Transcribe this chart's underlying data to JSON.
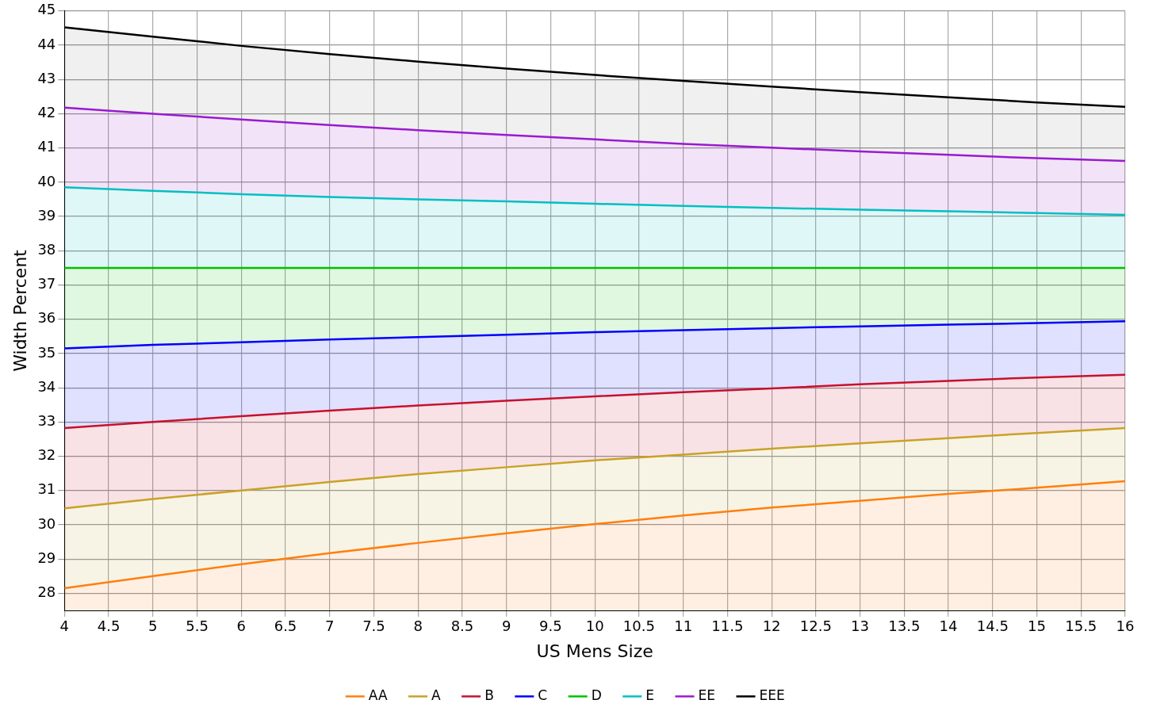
{
  "chart_data": {
    "type": "area",
    "xlabel": "US Mens Size",
    "ylabel": "Width Percent",
    "x": [
      4,
      5,
      6,
      7,
      8,
      9,
      10,
      11,
      12,
      13,
      14,
      15,
      16
    ],
    "xlim": [
      4,
      16
    ],
    "xticks": [
      4,
      4.5,
      5,
      5.5,
      6,
      6.5,
      7,
      7.5,
      8,
      8.5,
      9,
      9.5,
      10,
      10.5,
      11,
      11.5,
      12,
      12.5,
      13,
      13.5,
      14,
      14.5,
      15,
      15.5,
      16
    ],
    "ylim": [
      27.5,
      45
    ],
    "yticks": [
      28,
      29,
      30,
      31,
      32,
      33,
      34,
      35,
      36,
      37,
      38,
      39,
      40,
      41,
      42,
      43,
      44,
      45
    ],
    "grid": true,
    "legend": "bottom",
    "marker": "none",
    "line_style": "solid",
    "series": [
      {
        "name": "AA",
        "color": "#ff7f0e",
        "values": [
          28.15,
          28.5,
          28.85,
          29.17,
          29.47,
          29.75,
          30.02,
          30.27,
          30.5,
          30.7,
          30.9,
          31.08,
          31.27
        ]
      },
      {
        "name": "A",
        "color": "#c9a227",
        "values": [
          30.48,
          30.75,
          31.0,
          31.25,
          31.48,
          31.68,
          31.88,
          32.05,
          32.22,
          32.38,
          32.53,
          32.68,
          32.82
        ]
      },
      {
        "name": "B",
        "color": "#c8102e",
        "values": [
          32.82,
          33.0,
          33.17,
          33.33,
          33.48,
          33.62,
          33.75,
          33.87,
          33.98,
          34.1,
          34.2,
          34.3,
          34.38
        ]
      },
      {
        "name": "C",
        "color": "#0000ff",
        "values": [
          35.15,
          35.25,
          35.33,
          35.41,
          35.48,
          35.55,
          35.62,
          35.68,
          35.74,
          35.79,
          35.84,
          35.89,
          35.94
        ]
      },
      {
        "name": "D",
        "color": "#00c000",
        "values": [
          37.5,
          37.5,
          37.5,
          37.5,
          37.5,
          37.5,
          37.5,
          37.5,
          37.5,
          37.5,
          37.5,
          37.5,
          37.5
        ]
      },
      {
        "name": "E",
        "color": "#00c0c0",
        "values": [
          39.85,
          39.75,
          39.65,
          39.57,
          39.5,
          39.44,
          39.37,
          39.31,
          39.25,
          39.2,
          39.15,
          39.1,
          39.05
        ]
      },
      {
        "name": "EE",
        "color": "#9a1ad0",
        "values": [
          42.18,
          42.0,
          41.83,
          41.67,
          41.52,
          41.38,
          41.25,
          41.12,
          41.01,
          40.9,
          40.8,
          40.7,
          40.62
        ]
      },
      {
        "name": "EEE",
        "color": "#000000",
        "values": [
          44.52,
          44.25,
          43.98,
          43.74,
          43.52,
          43.32,
          43.13,
          42.96,
          42.79,
          42.63,
          42.48,
          42.33,
          42.2
        ]
      }
    ]
  }
}
